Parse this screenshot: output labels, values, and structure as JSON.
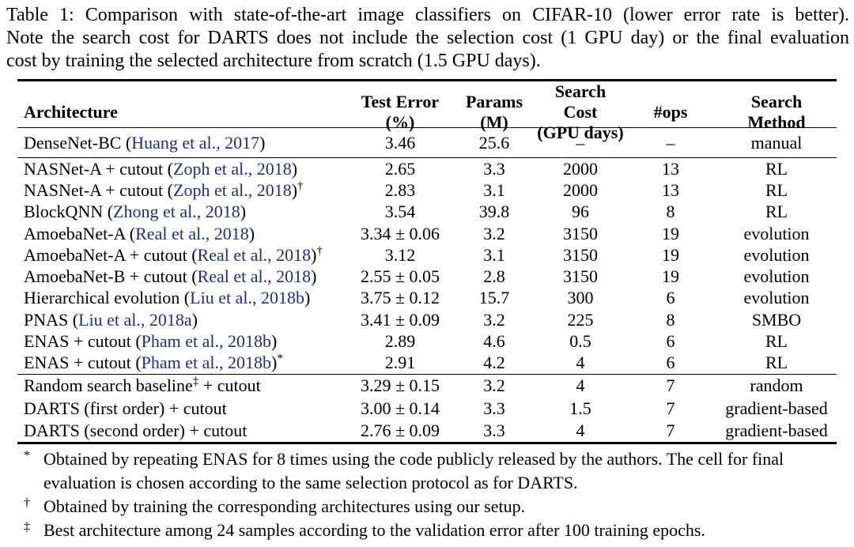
{
  "caption": {
    "lines": [
      "Table 1: Comparison with state-of-the-art image classifiers on CIFAR-10 (lower error rate is better).",
      "Note the search cost for DARTS does not include the selection cost (1 GPU day) or the final evaluation",
      "cost by training the selected architecture from scratch (1.5 GPU days)."
    ]
  },
  "colors": {
    "citation_link": "#1c2f87",
    "text": "#000000",
    "background": "#ffffff"
  },
  "table": {
    "headers": {
      "architecture": "Architecture",
      "test_error_1": "Test Error",
      "test_error_2": "(%)",
      "params_1": "Params",
      "params_2": "(M)",
      "search_cost_1": "Search Cost",
      "search_cost_2": "(GPU days)",
      "ops": "#ops",
      "method_1": "Search",
      "method_2": "Method"
    },
    "groups": [
      {
        "rows": [
          {
            "a1": "DenseNet-BC (",
            "cite": "Huang et al., 2017",
            "a2": ")",
            "sup": "",
            "a3": "",
            "error": "3.46",
            "params": "25.6",
            "cost": "–",
            "ops": "–",
            "method": "manual"
          }
        ]
      },
      {
        "rows": [
          {
            "a1": "NASNet-A + cutout (",
            "cite": "Zoph et al., 2018",
            "a2": ")",
            "sup": "",
            "a3": "",
            "error": "2.65",
            "params": "3.3",
            "cost": "2000",
            "ops": "13",
            "method": "RL"
          },
          {
            "a1": "NASNet-A + cutout (",
            "cite": "Zoph et al., 2018",
            "a2": ")",
            "sup": "†",
            "a3": "",
            "error": "2.83",
            "params": "3.1",
            "cost": "2000",
            "ops": "13",
            "method": "RL"
          },
          {
            "a1": "BlockQNN (",
            "cite": "Zhong et al., 2018",
            "a2": ")",
            "sup": "",
            "a3": "",
            "error": "3.54",
            "params": "39.8",
            "cost": "96",
            "ops": "8",
            "method": "RL"
          },
          {
            "a1": "AmoebaNet-A (",
            "cite": "Real et al., 2018",
            "a2": ")",
            "sup": "",
            "a3": "",
            "error": "3.34 ± 0.06",
            "params": "3.2",
            "cost": "3150",
            "ops": "19",
            "method": "evolution"
          },
          {
            "a1": "AmoebaNet-A + cutout (",
            "cite": "Real et al., 2018",
            "a2": ")",
            "sup": "†",
            "a3": "",
            "error": "3.12",
            "params": "3.1",
            "cost": "3150",
            "ops": "19",
            "method": "evolution"
          },
          {
            "a1": "AmoebaNet-B + cutout (",
            "cite": "Real et al., 2018",
            "a2": ")",
            "sup": "",
            "a3": "",
            "error": "2.55 ± 0.05",
            "params": "2.8",
            "cost": "3150",
            "ops": "19",
            "method": "evolution"
          },
          {
            "a1": "Hierarchical evolution (",
            "cite": "Liu et al., 2018b",
            "a2": ")",
            "sup": "",
            "a3": "",
            "error": "3.75 ± 0.12",
            "params": "15.7",
            "cost": "300",
            "ops": "6",
            "method": "evolution"
          },
          {
            "a1": "PNAS (",
            "cite": "Liu et al., 2018a",
            "a2": ")",
            "sup": "",
            "a3": "",
            "error": "3.41 ± 0.09",
            "params": "3.2",
            "cost": "225",
            "ops": "8",
            "method": "SMBO"
          },
          {
            "a1": "ENAS + cutout (",
            "cite": "Pham et al., 2018b",
            "a2": ")",
            "sup": "",
            "a3": "",
            "error": "2.89",
            "params": "4.6",
            "cost": "0.5",
            "ops": "6",
            "method": "RL"
          },
          {
            "a1": "ENAS + cutout (",
            "cite": "Pham et al., 2018b",
            "a2": ")",
            "sup": "*",
            "a3": "",
            "error": "2.91",
            "params": "4.2",
            "cost": "4",
            "ops": "6",
            "method": "RL"
          }
        ]
      },
      {
        "rows": [
          {
            "a1": "Random search baseline",
            "cite": "",
            "a2": "",
            "sup": "‡",
            "a3": " + cutout",
            "error": "3.29 ± 0.15",
            "params": "3.2",
            "cost": "4",
            "ops": "7",
            "method": "random"
          },
          {
            "a1": "DARTS (first order) + cutout",
            "cite": "",
            "a2": "",
            "sup": "",
            "a3": "",
            "error": "3.00 ± 0.14",
            "params": "3.3",
            "cost": "1.5",
            "ops": "7",
            "method": "gradient-based"
          },
          {
            "a1": "DARTS (second order) + cutout",
            "cite": "",
            "a2": "",
            "sup": "",
            "a3": "",
            "error": "2.76 ± 0.09",
            "params": "3.3",
            "cost": "4",
            "ops": "7",
            "method": "gradient-based"
          }
        ]
      }
    ]
  },
  "footnotes": [
    {
      "marker": "*",
      "text": "Obtained by repeating ENAS for 8 times using the code publicly released by the authors. The cell for final evaluation is chosen according to the same selection protocol as for DARTS."
    },
    {
      "marker": "†",
      "text": "Obtained by training the corresponding architectures using our setup."
    },
    {
      "marker": "‡",
      "text": "Best architecture among 24 samples according to the validation error after 100 training epochs."
    }
  ]
}
